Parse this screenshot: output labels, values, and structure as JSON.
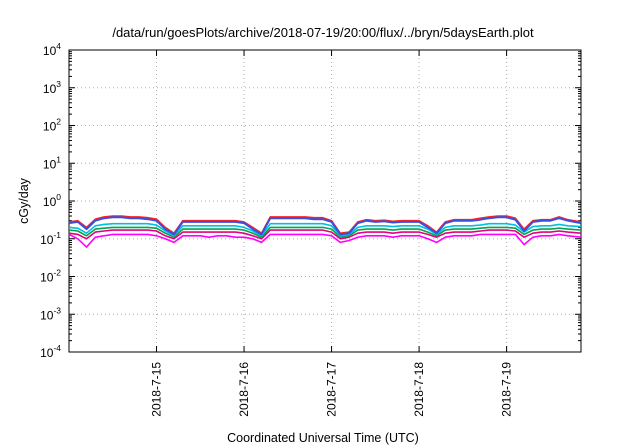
{
  "chart_data": {
    "type": "line",
    "title": "/data/run/goesPlots/archive/2018-07-19/20:00/flux/../bryn/5daysEarth.plot",
    "xlabel": "Coordinated Universal Time (UTC)",
    "ylabel": "cGy/day",
    "yscale": "log",
    "ylim_exponents": [
      -4,
      4
    ],
    "yticks": [
      {
        "base": "10",
        "exp": "4"
      },
      {
        "base": "10",
        "exp": "3"
      },
      {
        "base": "10",
        "exp": "2"
      },
      {
        "base": "10",
        "exp": "1"
      },
      {
        "base": "10",
        "exp": "0"
      },
      {
        "base": "10",
        "exp": "-1"
      },
      {
        "base": "10",
        "exp": "-2"
      },
      {
        "base": "10",
        "exp": "-3"
      },
      {
        "base": "10",
        "exp": "-4"
      }
    ],
    "xlim_days": [
      14.0,
      19.85
    ],
    "xticks": [
      {
        "label": "2018-7-15",
        "day": 15
      },
      {
        "label": "2018-7-16",
        "day": 16
      },
      {
        "label": "2018-7-17",
        "day": 17
      },
      {
        "label": "2018-7-18",
        "day": 18
      },
      {
        "label": "2018-7-19",
        "day": 19
      }
    ],
    "grid": true,
    "legend": "none",
    "x_days": [
      14.0,
      14.1,
      14.2,
      14.3,
      14.4,
      14.5,
      14.6,
      14.7,
      14.8,
      14.9,
      15.0,
      15.1,
      15.2,
      15.3,
      15.4,
      15.5,
      15.6,
      15.7,
      15.8,
      15.9,
      16.0,
      16.1,
      16.2,
      16.3,
      16.4,
      16.5,
      16.6,
      16.7,
      16.8,
      16.9,
      17.0,
      17.1,
      17.2,
      17.3,
      17.4,
      17.5,
      17.6,
      17.7,
      17.8,
      17.9,
      18.0,
      18.1,
      18.2,
      18.3,
      18.4,
      18.5,
      18.6,
      18.7,
      18.8,
      18.9,
      19.0,
      19.1,
      19.2,
      19.3,
      19.4,
      19.5,
      19.6,
      19.7,
      19.85
    ],
    "series": [
      {
        "color": "#ff00ff",
        "values": [
          0.13,
          0.1,
          0.06,
          0.11,
          0.12,
          0.13,
          0.13,
          0.13,
          0.13,
          0.13,
          0.12,
          0.1,
          0.08,
          0.12,
          0.12,
          0.12,
          0.11,
          0.12,
          0.12,
          0.11,
          0.11,
          0.1,
          0.08,
          0.13,
          0.13,
          0.13,
          0.13,
          0.13,
          0.13,
          0.13,
          0.12,
          0.08,
          0.09,
          0.11,
          0.12,
          0.12,
          0.12,
          0.11,
          0.12,
          0.12,
          0.12,
          0.1,
          0.08,
          0.11,
          0.12,
          0.12,
          0.12,
          0.13,
          0.13,
          0.13,
          0.13,
          0.13,
          0.07,
          0.11,
          0.12,
          0.12,
          0.13,
          0.12,
          0.11
        ]
      },
      {
        "color": "#e6007a",
        "values": [
          0.14,
          0.13,
          0.1,
          0.15,
          0.16,
          0.17,
          0.17,
          0.17,
          0.17,
          0.17,
          0.16,
          0.12,
          0.1,
          0.15,
          0.15,
          0.15,
          0.15,
          0.15,
          0.15,
          0.15,
          0.14,
          0.12,
          0.1,
          0.17,
          0.17,
          0.17,
          0.17,
          0.17,
          0.17,
          0.17,
          0.15,
          0.1,
          0.11,
          0.14,
          0.15,
          0.15,
          0.15,
          0.14,
          0.15,
          0.15,
          0.15,
          0.13,
          0.11,
          0.14,
          0.15,
          0.15,
          0.15,
          0.16,
          0.17,
          0.17,
          0.17,
          0.16,
          0.11,
          0.14,
          0.15,
          0.15,
          0.16,
          0.15,
          0.14
        ]
      },
      {
        "color": "#00a651",
        "values": [
          0.17,
          0.16,
          0.12,
          0.18,
          0.19,
          0.2,
          0.2,
          0.2,
          0.2,
          0.2,
          0.19,
          0.14,
          0.11,
          0.18,
          0.18,
          0.18,
          0.18,
          0.18,
          0.18,
          0.18,
          0.17,
          0.14,
          0.11,
          0.2,
          0.2,
          0.2,
          0.2,
          0.2,
          0.2,
          0.2,
          0.18,
          0.11,
          0.12,
          0.17,
          0.18,
          0.18,
          0.18,
          0.17,
          0.18,
          0.18,
          0.18,
          0.15,
          0.12,
          0.17,
          0.18,
          0.18,
          0.18,
          0.19,
          0.2,
          0.2,
          0.2,
          0.19,
          0.13,
          0.17,
          0.18,
          0.18,
          0.19,
          0.18,
          0.17
        ]
      },
      {
        "color": "#00c0e0",
        "values": [
          0.2,
          0.19,
          0.14,
          0.22,
          0.24,
          0.25,
          0.25,
          0.25,
          0.25,
          0.25,
          0.23,
          0.16,
          0.12,
          0.22,
          0.22,
          0.22,
          0.22,
          0.22,
          0.22,
          0.22,
          0.2,
          0.16,
          0.12,
          0.25,
          0.25,
          0.25,
          0.25,
          0.25,
          0.25,
          0.25,
          0.22,
          0.12,
          0.13,
          0.2,
          0.22,
          0.22,
          0.22,
          0.21,
          0.22,
          0.22,
          0.22,
          0.18,
          0.13,
          0.2,
          0.22,
          0.22,
          0.22,
          0.23,
          0.25,
          0.25,
          0.25,
          0.23,
          0.15,
          0.21,
          0.22,
          0.22,
          0.24,
          0.22,
          0.21
        ]
      },
      {
        "color": "#ff2020",
        "values": [
          0.28,
          0.3,
          0.2,
          0.33,
          0.38,
          0.4,
          0.4,
          0.38,
          0.38,
          0.36,
          0.33,
          0.2,
          0.14,
          0.3,
          0.3,
          0.3,
          0.3,
          0.3,
          0.3,
          0.3,
          0.28,
          0.2,
          0.14,
          0.38,
          0.38,
          0.38,
          0.38,
          0.38,
          0.36,
          0.36,
          0.3,
          0.14,
          0.15,
          0.28,
          0.32,
          0.3,
          0.31,
          0.29,
          0.3,
          0.3,
          0.3,
          0.22,
          0.15,
          0.28,
          0.32,
          0.32,
          0.32,
          0.35,
          0.38,
          0.4,
          0.4,
          0.35,
          0.18,
          0.3,
          0.32,
          0.32,
          0.38,
          0.32,
          0.28
        ]
      },
      {
        "color": "#3a4fe0",
        "values": [
          0.26,
          0.28,
          0.18,
          0.3,
          0.35,
          0.37,
          0.37,
          0.35,
          0.35,
          0.33,
          0.3,
          0.18,
          0.13,
          0.28,
          0.28,
          0.28,
          0.28,
          0.28,
          0.28,
          0.28,
          0.26,
          0.18,
          0.13,
          0.35,
          0.35,
          0.35,
          0.35,
          0.35,
          0.33,
          0.33,
          0.28,
          0.13,
          0.14,
          0.26,
          0.3,
          0.28,
          0.29,
          0.27,
          0.28,
          0.28,
          0.28,
          0.2,
          0.14,
          0.26,
          0.3,
          0.3,
          0.3,
          0.32,
          0.35,
          0.37,
          0.37,
          0.32,
          0.16,
          0.28,
          0.3,
          0.3,
          0.35,
          0.3,
          0.26
        ]
      }
    ]
  }
}
